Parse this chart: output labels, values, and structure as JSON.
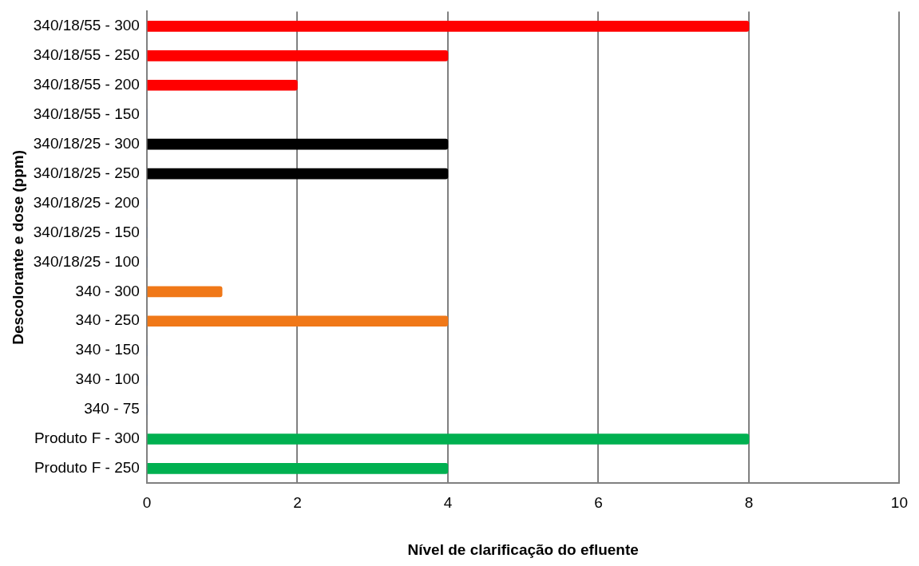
{
  "chart_data": {
    "type": "bar",
    "orientation": "horizontal",
    "xlabel": "Nível de clarificação do efluente",
    "ylabel": "Descolorante e dose (ppm)",
    "categories": [
      "340/18/55 - 300",
      "340/18/55 - 250",
      "340/18/55 - 200",
      "340/18/55 - 150",
      "340/18/25 - 300",
      "340/18/25 - 250",
      "340/18/25 - 200",
      "340/18/25 - 150",
      "340/18/25 - 100",
      "340 - 300",
      "340 - 250",
      "340 - 150",
      "340 - 100",
      "340 - 75",
      "Produto F - 300",
      "Produto F - 250"
    ],
    "values": [
      8,
      4,
      2,
      0,
      4,
      4,
      0,
      0,
      0,
      1,
      4,
      0,
      0,
      0,
      8,
      4
    ],
    "colors": [
      "#ff0000",
      "#ff0000",
      "#ff0000",
      "#4f6f9f",
      "#000000",
      "#000000",
      "#4f6f9f",
      "#4f6f9f",
      "#4f6f9f",
      "#f07818",
      "#f07818",
      "#4f6f9f",
      "#4f6f9f",
      "#4f6f9f",
      "#00b050",
      "#00b050"
    ],
    "xlim": [
      0,
      10
    ],
    "xticks": [
      0,
      2,
      4,
      6,
      8,
      10
    ],
    "grid": "x",
    "legend": false
  }
}
